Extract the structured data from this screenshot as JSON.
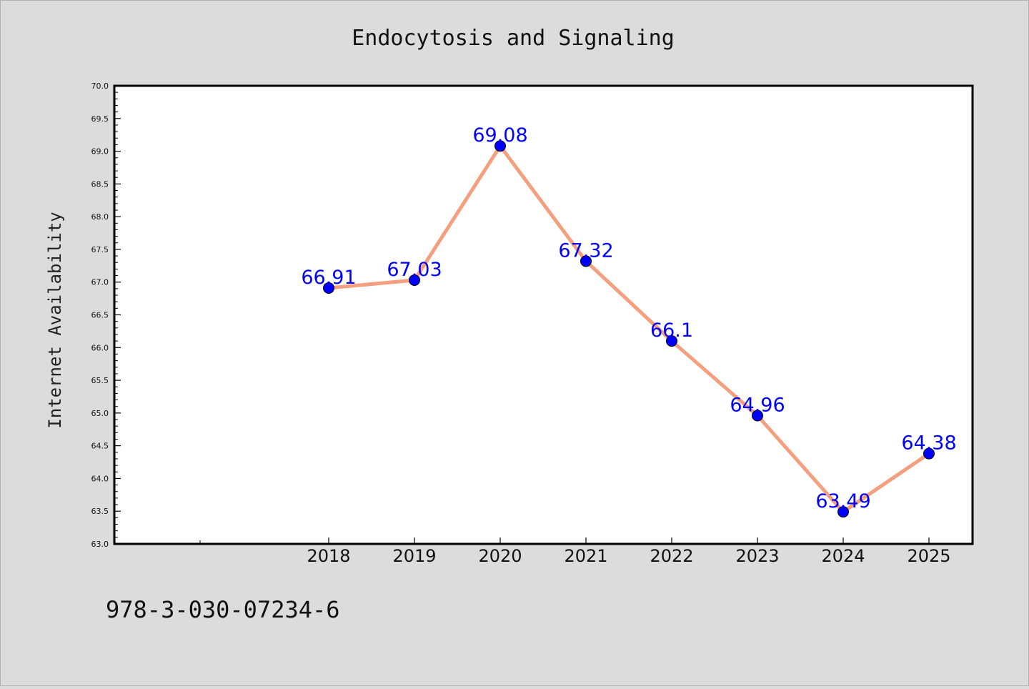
{
  "chart_data": {
    "type": "line",
    "title": "Endocytosis and Signaling",
    "xlabel": "",
    "ylabel": "Internet Availability",
    "categories": [
      "2018",
      "2019",
      "2020",
      "2021",
      "2022",
      "2023",
      "2024",
      "2025"
    ],
    "series": [
      {
        "values": [
          66.91,
          67.03,
          69.08,
          67.32,
          66.1,
          64.96,
          63.49,
          64.38
        ]
      }
    ],
    "data_labels": [
      "66.91",
      "67.03",
      "69.08",
      "67.32",
      "66.1",
      "64.96",
      "63.49",
      "64.38"
    ],
    "ylim": [
      63.0,
      70.0
    ],
    "yticks": [
      "63.0",
      "63.5",
      "64.0",
      "64.5",
      "65.0",
      "65.5",
      "66.0",
      "66.5",
      "67.0",
      "67.5",
      "68.0",
      "68.5",
      "69.0",
      "69.5",
      "70.0"
    ],
    "grid": false,
    "legend": "none",
    "colors": {
      "line": "#f4a07e",
      "marker": "#0000ff",
      "label": "#0000ff",
      "plot_bg": "#ffffff",
      "figure_bg": "#dcdcdc"
    }
  },
  "footer": {
    "text": "978-3-030-07234-6"
  }
}
